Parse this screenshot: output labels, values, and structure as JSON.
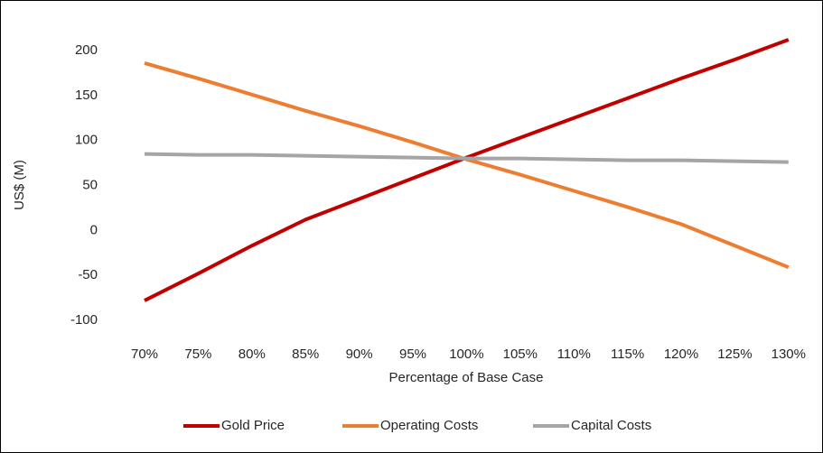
{
  "chart_data": {
    "type": "line",
    "x_label": "Percentage of Base Case",
    "y_label": "US$ (M)",
    "categories": [
      "70%",
      "75%",
      "80%",
      "85%",
      "90%",
      "95%",
      "100%",
      "105%",
      "110%",
      "115%",
      "120%",
      "125%",
      "130%"
    ],
    "series": [
      {
        "name": "Gold Price",
        "color": "#c00000",
        "values": [
          -78,
          -48,
          -17,
          12,
          35,
          58,
          81,
          103,
          125,
          147,
          169,
          190,
          212
        ]
      },
      {
        "name": "Operating Costs",
        "color": "#ed7d31",
        "values": [
          186,
          169,
          151,
          133,
          116,
          98,
          79,
          62,
          44,
          26,
          7,
          -17,
          -41
        ]
      },
      {
        "name": "Capital Costs",
        "color": "#a5a5a5",
        "values": [
          85,
          84,
          84,
          83,
          82,
          81,
          80,
          80,
          79,
          78,
          78,
          77,
          76
        ]
      }
    ],
    "ylim": [
      -100,
      200
    ],
    "yticks": [
      -100,
      -50,
      0,
      50,
      100,
      150,
      200
    ],
    "grid": false,
    "legend": "bottom"
  }
}
